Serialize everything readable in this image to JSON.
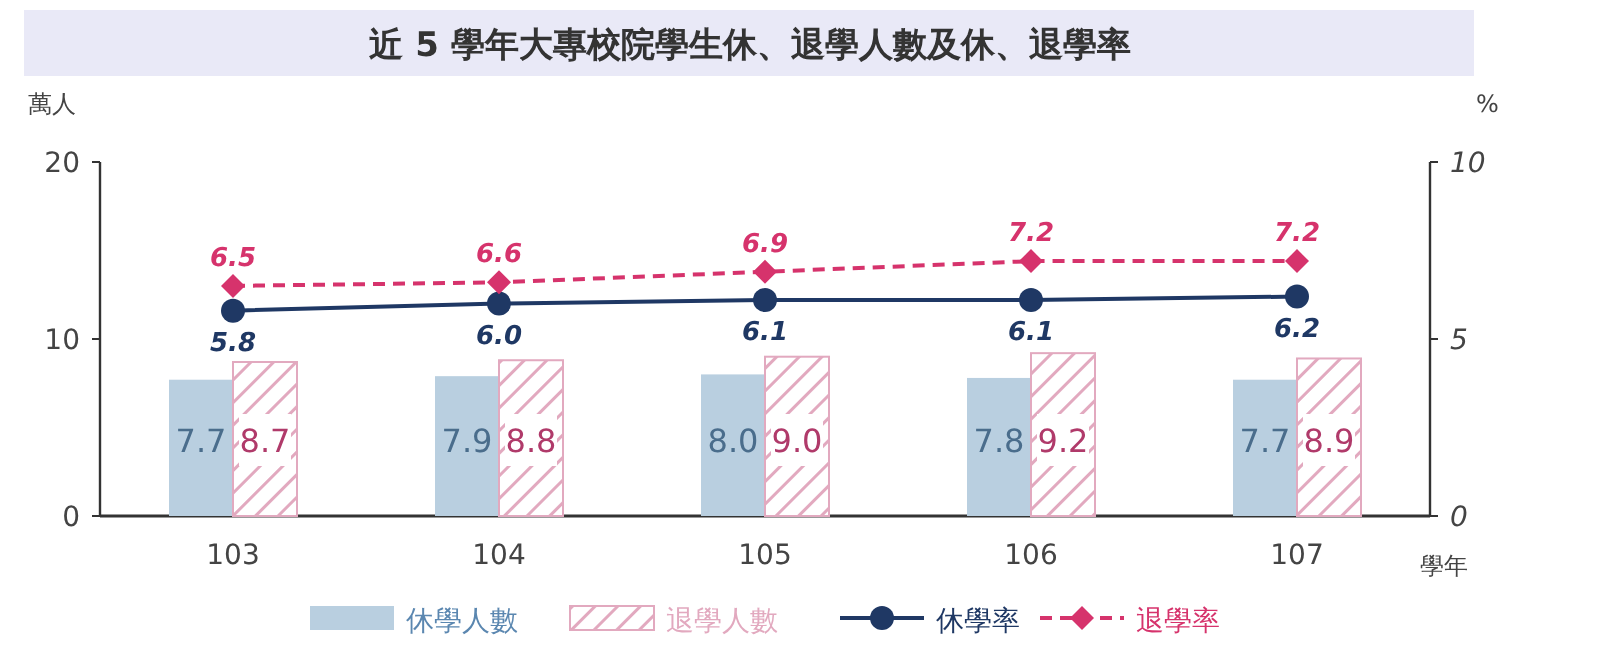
{
  "chart_data": {
    "type": "bar",
    "title": "近 5 學年大專校院學生休、退學人數及休、退學率",
    "xlabel": "學年",
    "ylabel": "萬人",
    "y2label": "%",
    "categories": [
      "103",
      "104",
      "105",
      "106",
      "107"
    ],
    "series": [
      {
        "name": "休學人數",
        "color": "#b9cfe0",
        "values": [
          7.7,
          7.9,
          8.0,
          7.8,
          7.7
        ],
        "value_labels": [
          "7.7",
          "7.9",
          "8.0",
          "7.8",
          "7.7"
        ]
      },
      {
        "name": "退學人數",
        "color": "#e2a9bf",
        "values": [
          8.7,
          8.8,
          9.0,
          9.2,
          8.9
        ],
        "value_labels": [
          "8.7",
          "8.8",
          "9.0",
          "9.2",
          "8.9"
        ]
      },
      {
        "name": "休學率",
        "type": "line",
        "axis": "y2",
        "color": "#1f3864",
        "marker": "circle",
        "line_style": "solid",
        "values": [
          5.8,
          6.0,
          6.1,
          6.1,
          6.2
        ],
        "value_labels": [
          "5.8",
          "6.0",
          "6.1",
          "6.1",
          "6.2"
        ]
      },
      {
        "name": "退學率",
        "type": "line",
        "axis": "y2",
        "color": "#d6336c",
        "marker": "diamond",
        "line_style": "dashed",
        "values": [
          6.5,
          6.6,
          6.9,
          7.2,
          7.2
        ],
        "value_labels": [
          "6.5",
          "6.6",
          "6.9",
          "7.2",
          "7.2"
        ]
      }
    ],
    "ylim": [
      0,
      20
    ],
    "yticks": [
      0,
      10,
      20
    ],
    "y2lim": [
      0,
      10
    ],
    "y2ticks": [
      0,
      5,
      10
    ],
    "legend": "bottom",
    "grid": false
  }
}
